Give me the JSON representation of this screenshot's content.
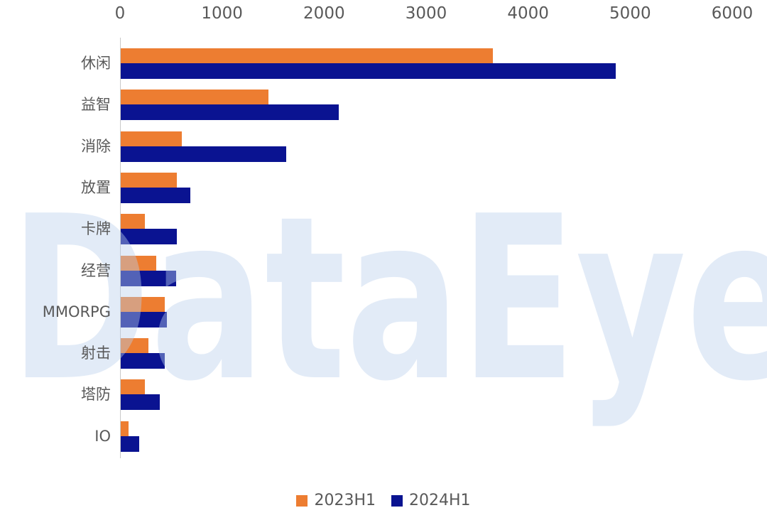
{
  "watermark": {
    "text": "DataEye"
  },
  "colors": {
    "background": "#ffffff",
    "axis_line": "#c9c9c9",
    "tick_label": "#595959",
    "category_label": "#595959",
    "legend_label": "#595959",
    "watermark": "rgba(185,208,236,0.42)"
  },
  "chart_data": {
    "type": "bar",
    "orientation": "horizontal",
    "title": "",
    "xlabel": "",
    "ylabel": "",
    "xlim": [
      0,
      6000
    ],
    "x_ticks": [
      0,
      1000,
      2000,
      3000,
      4000,
      5000,
      6000
    ],
    "grid": false,
    "legend_position": "bottom",
    "categories": [
      "休闲",
      "益智",
      "消除",
      "放置",
      "卡牌",
      "经营",
      "MMORPG",
      "射击",
      "塔防",
      "IO"
    ],
    "series": [
      {
        "name": "2023H1",
        "color": "#ED7D31",
        "values": [
          3650,
          1450,
          600,
          550,
          240,
          350,
          430,
          270,
          240,
          80
        ]
      },
      {
        "name": "2024H1",
        "color": "#0A1391",
        "values": [
          4850,
          2140,
          1620,
          680,
          550,
          540,
          455,
          430,
          380,
          180
        ]
      }
    ]
  }
}
